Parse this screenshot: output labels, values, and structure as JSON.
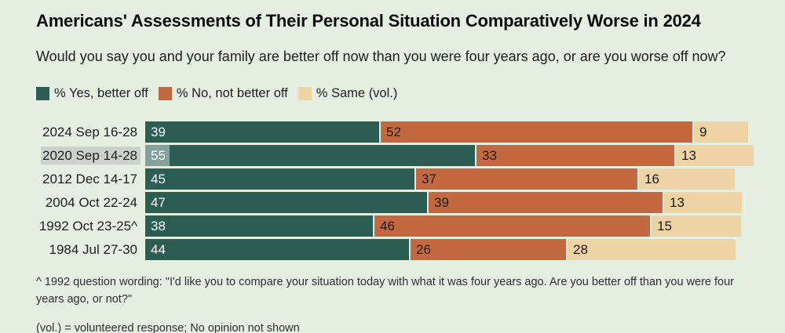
{
  "title": "Americans' Assessments of Their Personal Situation Comparatively Worse in 2024",
  "subtitle": "Would you say you and your family are better off now than you were four years ago, or are you worse off now?",
  "colors": {
    "background": "#e4efe2",
    "teal": "#2b5d52",
    "orange": "#c4693f",
    "tan": "#eed3a5",
    "selection_gray": "#ccd1cc",
    "value_text_on_teal": "#ffffff",
    "value_text_on_light": "#1a1a1a"
  },
  "legend": [
    {
      "label": "% Yes, better off",
      "color_key": "teal"
    },
    {
      "label": "% No, not better off",
      "color_key": "orange"
    },
    {
      "label": "% Same (vol.)",
      "color_key": "tan"
    }
  ],
  "chart_data": {
    "type": "bar",
    "orientation": "horizontal-stacked",
    "unit": "percent",
    "categories": [
      "2024 Sep 16-28",
      "2020 Sep 14-28",
      "2012 Dec 14-17",
      "2004 Oct 22-24",
      "1992 Oct 23-25^",
      "1984 Jul 27-30"
    ],
    "series": [
      {
        "name": "% Yes, better off",
        "values": [
          39,
          55,
          45,
          47,
          38,
          44
        ]
      },
      {
        "name": "% No, not better off",
        "values": [
          52,
          33,
          37,
          39,
          46,
          26
        ]
      },
      {
        "name": "% Same (vol.)",
        "values": [
          9,
          13,
          16,
          13,
          15,
          28
        ]
      }
    ],
    "xlim": [
      0,
      101
    ],
    "grid": false,
    "legend_position": "top-left",
    "selected_category": "2020 Sep 14-28",
    "selection_note": "row label and first value shown with text-selection highlight"
  },
  "footnotes": {
    "note1": "^ 1992 question wording: \"I'd like you to compare your situation today with what it was four years ago. Are you better off than you were four years ago, or not?\"",
    "note2": "(vol.) = volunteered response; No opinion not shown"
  }
}
